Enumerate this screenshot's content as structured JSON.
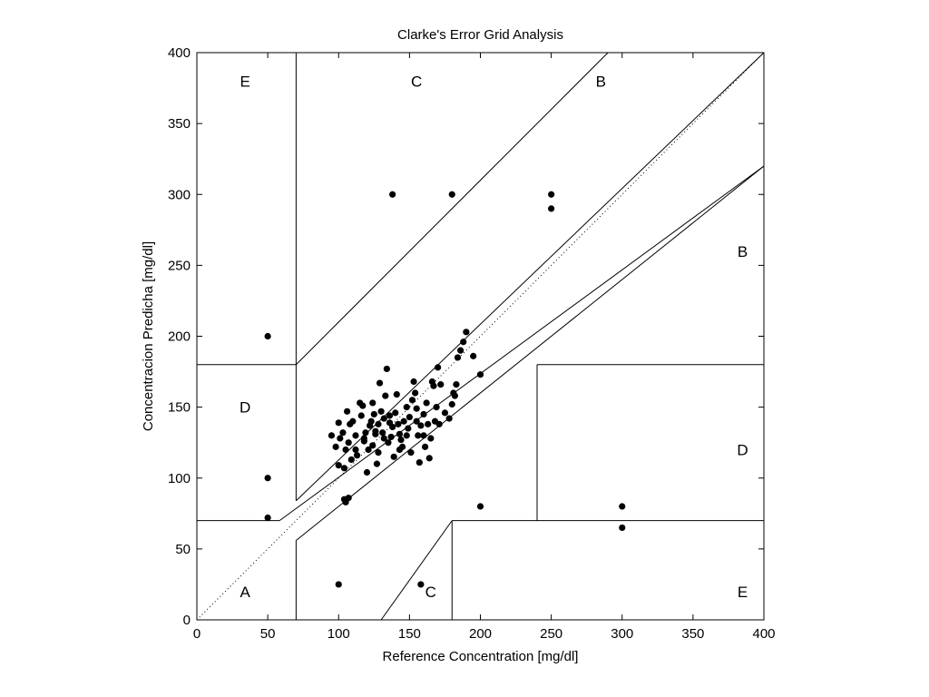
{
  "chart_data": {
    "type": "scatter",
    "title": "Clarke's Error Grid Analysis",
    "xlabel": "Reference Concentration [mg/dl]",
    "ylabel": "Concentracion Predicha [mg/dl]",
    "xlim": [
      0,
      400
    ],
    "ylim": [
      0,
      400
    ],
    "xticks": [
      0,
      50,
      100,
      150,
      200,
      250,
      300,
      350,
      400
    ],
    "yticks": [
      0,
      50,
      100,
      150,
      200,
      250,
      300,
      350,
      400
    ],
    "grid": false,
    "legend": "none",
    "colors": {
      "axis": "#000000",
      "points": "#000000",
      "lines": "#000000"
    },
    "region_labels": [
      {
        "text": "E",
        "x": 34,
        "y": 380
      },
      {
        "text": "C",
        "x": 155,
        "y": 380
      },
      {
        "text": "B",
        "x": 285,
        "y": 380
      },
      {
        "text": "B",
        "x": 385,
        "y": 260
      },
      {
        "text": "D",
        "x": 34,
        "y": 150
      },
      {
        "text": "D",
        "x": 385,
        "y": 120
      },
      {
        "text": "A",
        "x": 34,
        "y": 20
      },
      {
        "text": "C",
        "x": 165,
        "y": 20
      },
      {
        "text": "E",
        "x": 385,
        "y": 20
      }
    ],
    "zone_lines": [
      {
        "x": [
          0,
          400
        ],
        "y": [
          0,
          400
        ],
        "style": "dotted"
      },
      {
        "x": [
          0,
          58.33
        ],
        "y": [
          70,
          70
        ]
      },
      {
        "x": [
          58.33,
          400
        ],
        "y": [
          70,
          320
        ]
      },
      {
        "x": [
          70,
          70
        ],
        "y": [
          84,
          400
        ]
      },
      {
        "x": [
          0,
          70
        ],
        "y": [
          180,
          180
        ]
      },
      {
        "x": [
          70,
          290
        ],
        "y": [
          180,
          400
        ]
      },
      {
        "x": [
          70,
          70
        ],
        "y": [
          0,
          56
        ]
      },
      {
        "x": [
          70,
          400
        ],
        "y": [
          56,
          320
        ]
      },
      {
        "x": [
          180,
          400
        ],
        "y": [
          70,
          70
        ]
      },
      {
        "x": [
          180,
          180
        ],
        "y": [
          0,
          70
        ]
      },
      {
        "x": [
          240,
          240
        ],
        "y": [
          70,
          180
        ]
      },
      {
        "x": [
          240,
          400
        ],
        "y": [
          180,
          180
        ]
      },
      {
        "x": [
          130,
          180
        ],
        "y": [
          0,
          70
        ]
      },
      {
        "x": [
          70,
          400
        ],
        "y": [
          84,
          400
        ]
      },
      {
        "x": [
          0,
          70
        ],
        "y": [
          0,
          0
        ]
      }
    ],
    "points": [
      [
        50,
        200
      ],
      [
        50,
        100
      ],
      [
        50,
        72
      ],
      [
        138,
        300
      ],
      [
        180,
        300
      ],
      [
        250,
        300
      ],
      [
        250,
        290
      ],
      [
        100,
        25
      ],
      [
        158,
        25
      ],
      [
        200,
        80
      ],
      [
        300,
        80
      ],
      [
        300,
        65
      ],
      [
        105,
        83
      ],
      [
        107,
        86
      ],
      [
        104,
        85
      ],
      [
        95,
        130
      ],
      [
        98,
        122
      ],
      [
        100,
        139
      ],
      [
        101,
        128
      ],
      [
        100,
        109
      ],
      [
        103,
        132
      ],
      [
        104,
        107
      ],
      [
        105,
        120
      ],
      [
        106,
        147
      ],
      [
        107,
        125
      ],
      [
        108,
        138
      ],
      [
        109,
        113
      ],
      [
        110,
        140
      ],
      [
        112,
        130
      ],
      [
        113,
        116
      ],
      [
        115,
        153
      ],
      [
        116,
        144
      ],
      [
        117,
        151
      ],
      [
        118,
        126
      ],
      [
        119,
        132
      ],
      [
        120,
        104
      ],
      [
        121,
        120
      ],
      [
        122,
        137
      ],
      [
        123,
        140
      ],
      [
        124,
        153
      ],
      [
        125,
        145
      ],
      [
        126,
        131
      ],
      [
        127,
        110
      ],
      [
        128,
        118
      ],
      [
        129,
        167
      ],
      [
        130,
        147
      ],
      [
        131,
        132
      ],
      [
        132,
        142
      ],
      [
        133,
        158
      ],
      [
        134,
        177
      ],
      [
        135,
        125
      ],
      [
        136,
        139
      ],
      [
        137,
        129
      ],
      [
        138,
        136
      ],
      [
        139,
        115
      ],
      [
        140,
        146
      ],
      [
        141,
        159
      ],
      [
        142,
        138
      ],
      [
        143,
        131
      ],
      [
        144,
        127
      ],
      [
        145,
        122
      ],
      [
        146,
        140
      ],
      [
        148,
        150
      ],
      [
        149,
        135
      ],
      [
        150,
        143
      ],
      [
        151,
        118
      ],
      [
        152,
        155
      ],
      [
        153,
        168
      ],
      [
        154,
        160
      ],
      [
        155,
        149
      ],
      [
        156,
        130
      ],
      [
        157,
        111
      ],
      [
        158,
        137
      ],
      [
        160,
        145
      ],
      [
        161,
        122
      ],
      [
        162,
        153
      ],
      [
        163,
        138
      ],
      [
        164,
        114
      ],
      [
        165,
        128
      ],
      [
        166,
        168
      ],
      [
        167,
        165
      ],
      [
        168,
        140
      ],
      [
        169,
        150
      ],
      [
        170,
        178
      ],
      [
        171,
        138
      ],
      [
        172,
        166
      ],
      [
        175,
        146
      ],
      [
        178,
        142
      ],
      [
        180,
        152
      ],
      [
        181,
        160
      ],
      [
        182,
        158
      ],
      [
        183,
        166
      ],
      [
        184,
        185
      ],
      [
        186,
        190
      ],
      [
        188,
        196
      ],
      [
        190,
        203
      ],
      [
        195,
        186
      ],
      [
        200,
        173
      ],
      [
        148,
        130
      ],
      [
        132,
        128
      ],
      [
        126,
        133
      ],
      [
        118,
        128
      ],
      [
        112,
        120
      ],
      [
        143,
        120
      ],
      [
        155,
        140
      ],
      [
        124,
        123
      ],
      [
        136,
        144
      ],
      [
        160,
        130
      ],
      [
        128,
        138
      ]
    ]
  }
}
